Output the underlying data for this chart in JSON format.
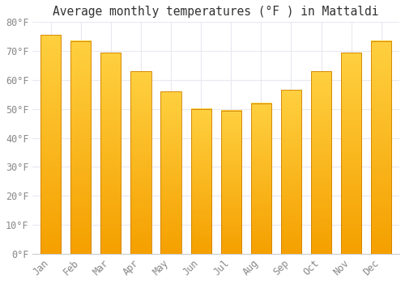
{
  "title": "Average monthly temperatures (°F ) in Mattaldi",
  "months": [
    "Jan",
    "Feb",
    "Mar",
    "Apr",
    "May",
    "Jun",
    "Jul",
    "Aug",
    "Sep",
    "Oct",
    "Nov",
    "Dec"
  ],
  "values": [
    75.5,
    73.5,
    69.5,
    63,
    56,
    50,
    49.5,
    52,
    56.5,
    63,
    69.5,
    73.5
  ],
  "bar_color_top": "#FFD040",
  "bar_color_bottom": "#F5A000",
  "bar_edge_color": "#D08000",
  "ylim": [
    0,
    80
  ],
  "yticks": [
    0,
    10,
    20,
    30,
    40,
    50,
    60,
    70,
    80
  ],
  "ytick_labels": [
    "0°F",
    "10°F",
    "20°F",
    "30°F",
    "40°F",
    "50°F",
    "60°F",
    "70°F",
    "80°F"
  ],
  "background_color": "#FFFFFF",
  "grid_color": "#E8E8F0",
  "title_fontsize": 10.5,
  "tick_fontsize": 8.5,
  "font_family": "monospace",
  "tick_color": "#888888",
  "bar_width": 0.68
}
